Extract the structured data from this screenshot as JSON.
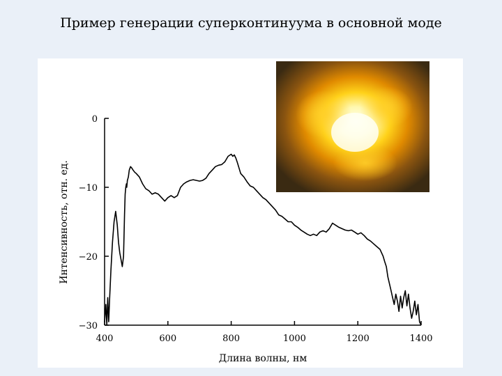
{
  "slide": {
    "title": "Пример генерации суперконтинуума в основной моде"
  },
  "inset": {
    "description_icon": "mode-spot-image",
    "colors": {
      "core": "#fffde0",
      "mid": "#ffb800",
      "edge": "#c04a00",
      "background": "#3a2a12"
    }
  },
  "chart_data": {
    "type": "line",
    "title": "",
    "xlabel": "Длина волны, нм",
    "ylabel": "Интенсивность, отн. ед.",
    "xlim": [
      400,
      1400
    ],
    "ylim": [
      -30,
      0
    ],
    "xticks": [
      400,
      600,
      800,
      1000,
      1200,
      1400
    ],
    "xtick_labels": [
      "400",
      "600",
      "800",
      "1000",
      "1200",
      "1400"
    ],
    "yticks": [
      0,
      -10,
      -20,
      -30
    ],
    "ytick_labels": [
      "0",
      "−10",
      "−20",
      "−30"
    ],
    "grid": false,
    "line_color": "#000000",
    "series": [
      {
        "x": [
          400,
          404,
          407,
          410,
          413,
          416,
          420,
          425,
          430,
          435,
          440,
          444,
          448,
          452,
          456,
          460,
          463,
          465,
          467,
          469,
          470,
          472,
          475,
          478,
          482,
          486,
          490,
          495,
          500,
          510,
          520,
          530,
          540,
          550,
          560,
          570,
          580,
          590,
          600,
          610,
          620,
          630,
          640,
          650,
          660,
          670,
          680,
          690,
          700,
          710,
          720,
          730,
          740,
          750,
          760,
          770,
          780,
          790,
          800,
          805,
          810,
          815,
          820,
          830,
          840,
          850,
          860,
          870,
          880,
          890,
          900,
          910,
          920,
          930,
          940,
          950,
          960,
          970,
          980,
          990,
          1000,
          1010,
          1020,
          1030,
          1040,
          1050,
          1060,
          1070,
          1080,
          1090,
          1100,
          1110,
          1120,
          1130,
          1140,
          1150,
          1160,
          1170,
          1180,
          1190,
          1200,
          1210,
          1220,
          1230,
          1240,
          1250,
          1260,
          1270,
          1280,
          1285,
          1290,
          1295,
          1300,
          1305,
          1310,
          1315,
          1320,
          1325,
          1330,
          1335,
          1340,
          1345,
          1350,
          1355,
          1360,
          1365,
          1370,
          1375,
          1380,
          1385,
          1390,
          1395,
          1400
        ],
        "y": [
          -29.5,
          -27,
          -30,
          -26,
          -29.5,
          -26,
          -22,
          -18,
          -15,
          -13.5,
          -15.5,
          -18,
          -19.5,
          -20.5,
          -21.5,
          -20,
          -14,
          -11,
          -10,
          -9.5,
          -10,
          -9,
          -8.5,
          -7.5,
          -7,
          -7.2,
          -7.5,
          -7.8,
          -8,
          -8.5,
          -9.5,
          -10.2,
          -10.5,
          -11,
          -10.8,
          -11,
          -11.5,
          -12,
          -11.5,
          -11.2,
          -11.5,
          -11.2,
          -10,
          -9.5,
          -9.2,
          -9,
          -8.9,
          -9,
          -9.1,
          -9,
          -8.7,
          -8,
          -7.5,
          -7,
          -6.8,
          -6.7,
          -6.3,
          -5.5,
          -5.2,
          -5.5,
          -5.3,
          -5.8,
          -6.5,
          -8,
          -8.5,
          -9.2,
          -9.8,
          -10,
          -10.5,
          -11,
          -11.5,
          -11.8,
          -12.3,
          -12.8,
          -13.3,
          -14,
          -14.2,
          -14.6,
          -15,
          -15,
          -15.5,
          -15.8,
          -16.2,
          -16.5,
          -16.8,
          -17,
          -16.8,
          -17,
          -16.5,
          -16.3,
          -16.5,
          -16,
          -15.2,
          -15.5,
          -15.8,
          -16,
          -16.2,
          -16.3,
          -16.2,
          -16.5,
          -16.8,
          -16.6,
          -17,
          -17.5,
          -17.8,
          -18.2,
          -18.6,
          -19,
          -20,
          -20.8,
          -21.5,
          -23,
          -24,
          -25,
          -26,
          -27,
          -25.5,
          -26.5,
          -28,
          -25.8,
          -27.5,
          -26,
          -25,
          -27.2,
          -25.5,
          -27.5,
          -29,
          -28,
          -26.5,
          -28.5,
          -27,
          -29.5,
          -30
        ]
      }
    ]
  }
}
